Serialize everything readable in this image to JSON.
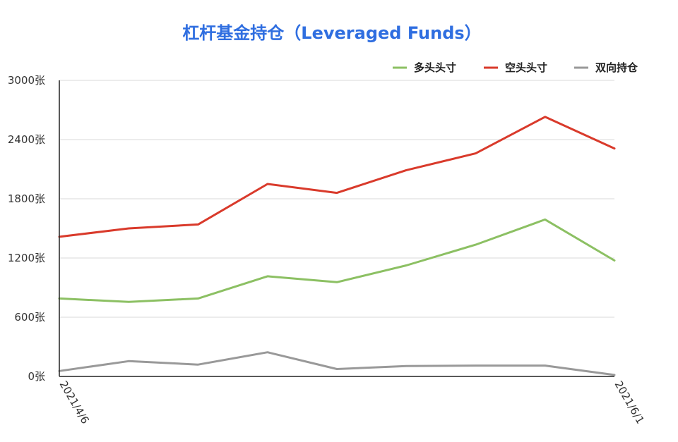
{
  "chart_data": {
    "type": "line",
    "title": "杠杆基金持仓（Leveraged Funds）",
    "xlabel": "",
    "ylabel": "",
    "x_tick_labels": [
      "2021/4/6",
      "2021/6/1"
    ],
    "y_ticks": [
      {
        "value": 0,
        "label": "0张"
      },
      {
        "value": 600,
        "label": "600张"
      },
      {
        "value": 1200,
        "label": "1200张"
      },
      {
        "value": 1800,
        "label": "1800张"
      },
      {
        "value": 2400,
        "label": "2400张"
      },
      {
        "value": 3000,
        "label": "3000张"
      }
    ],
    "ylim": [
      0,
      3000
    ],
    "grid": true,
    "legend_position": "top-right",
    "series": [
      {
        "name": "多头头寸",
        "color": "#8cc063",
        "values": [
          790,
          755,
          790,
          1015,
          955,
          1125,
          1335,
          1590,
          1175
        ]
      },
      {
        "name": "空头头寸",
        "color": "#d93a2b",
        "values": [
          1415,
          1500,
          1540,
          1950,
          1860,
          2090,
          2260,
          2630,
          2310
        ]
      },
      {
        "name": "双向持仓",
        "color": "#999999",
        "values": [
          55,
          155,
          120,
          245,
          75,
          105,
          110,
          110,
          15
        ]
      }
    ]
  }
}
